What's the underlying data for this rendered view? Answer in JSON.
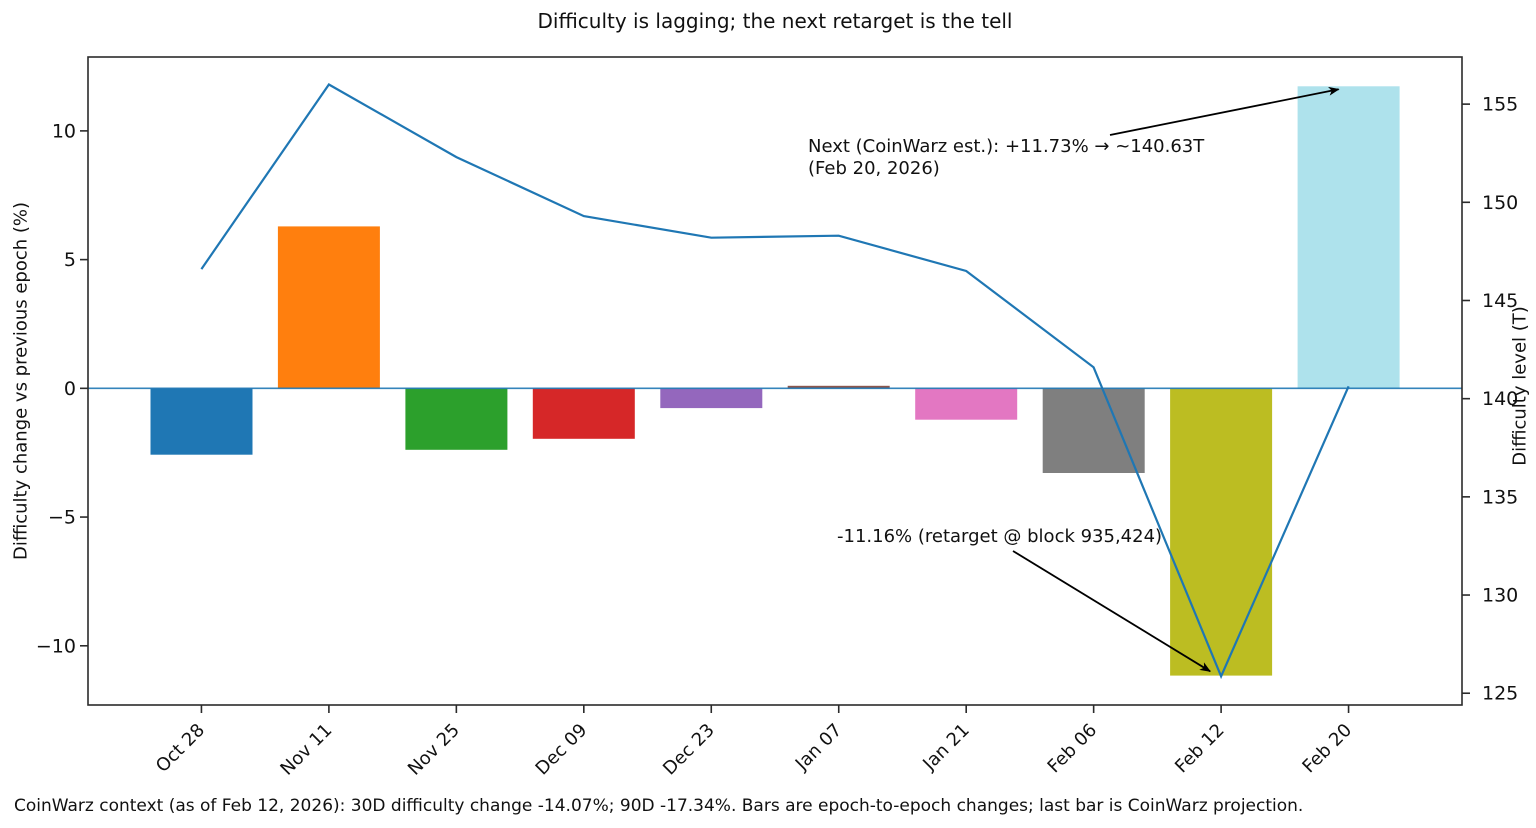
{
  "page": {
    "background": "#ffffff"
  },
  "chart_data": {
    "type": "bar+line",
    "title": "Difficulty is lagging; the next retarget is the tell",
    "categories": [
      "Oct 28",
      "Nov 11",
      "Nov 25",
      "Dec 09",
      "Dec 23",
      "Jan 07",
      "Jan 21",
      "Feb 06",
      "Feb 12",
      "Feb 20"
    ],
    "series": [
      {
        "name": "Difficulty change vs previous epoch (%)",
        "type": "bar",
        "axis": "left",
        "values": [
          -2.58,
          6.29,
          -2.39,
          -1.96,
          -0.77,
          0.1,
          -1.22,
          -3.29,
          -11.16,
          11.73
        ],
        "colors": [
          "#1f77b4",
          "#ff7f0e",
          "#2ca02c",
          "#d62728",
          "#9467bd",
          "#8c564b",
          "#e377c2",
          "#7f7f7f",
          "#bcbd22",
          "#aee2ec"
        ]
      },
      {
        "name": "Difficulty level (T)",
        "type": "line",
        "axis": "right",
        "values": [
          146.6,
          156.0,
          152.3,
          149.3,
          148.2,
          148.3,
          146.5,
          141.6,
          125.86,
          140.63
        ],
        "color": "#1f77b4"
      }
    ],
    "ylabel_left": "Difficulty change vs previous epoch (%)",
    "ylabel_right": "Difficulty level (T)",
    "yticks_left": [
      10,
      5,
      0,
      -5,
      -10
    ],
    "yticks_right": [
      155,
      150,
      145,
      140,
      135,
      130,
      125
    ],
    "ylim_left": [
      -12.3,
      12.87
    ],
    "ylim_right": [
      124.4,
      157.4
    ],
    "xlim": [
      -0.89,
      9.89
    ],
    "bar_width": 0.8,
    "x_tick_rotation": 45,
    "grid": false,
    "legend": null,
    "zero_line": {
      "value": 0,
      "axis": "left",
      "color": "#1f77b4"
    },
    "annotations": [
      {
        "id": "next-estimate",
        "text": "Next (CoinWarz est.): +11.73% → ~140.63T\n(Feb 20, 2026)",
        "points_to_category": "Feb 20",
        "points_to_feature": "bar-top"
      },
      {
        "id": "feb12-retarget",
        "text": "-11.16% (retarget @ block 935,424)",
        "points_to_category": "Feb 12",
        "points_to_feature": "line-point"
      }
    ],
    "caption": "CoinWarz context (as of Feb 12, 2026): 30D difficulty change -14.07%; 90D -17.34%. Bars are epoch-to-epoch changes; last bar is CoinWarz projection.",
    "spine_color": "#2b2b2b",
    "text_color": "#111111"
  }
}
